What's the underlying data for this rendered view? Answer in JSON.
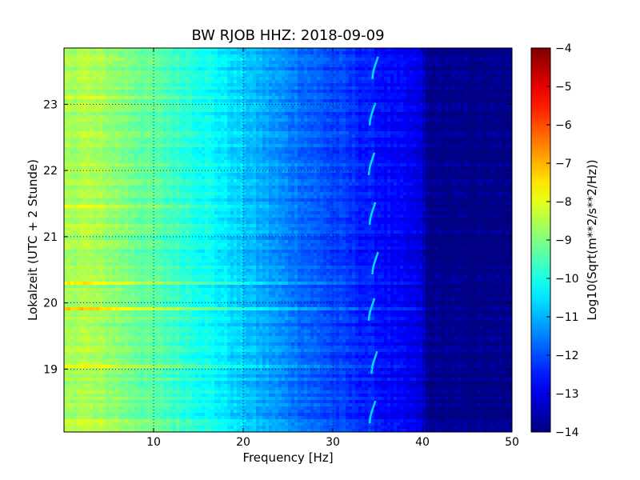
{
  "chart_data": {
    "type": "heatmap",
    "title": "BW RJOB HHZ: 2018-09-09",
    "xlabel": "Frequency [Hz]",
    "ylabel": "Lokalzeit (UTC + 2 Stunde)",
    "xlim": [
      0,
      50
    ],
    "ylim": [
      23.85,
      18.05
    ],
    "x_ticks": [
      10,
      20,
      30,
      40,
      50
    ],
    "x_tick_labels": [
      "10",
      "20",
      "30",
      "40",
      "50"
    ],
    "y_ticks": [
      19,
      20,
      21,
      22,
      23
    ],
    "y_tick_labels": [
      "19",
      "20",
      "21",
      "22",
      "23"
    ],
    "grid": true,
    "colorbar": {
      "label": "Log10(Sqrt(m**2/s**2/Hz))",
      "range": [
        -14,
        -4
      ],
      "ticks": [
        -14,
        -13,
        -12,
        -11,
        -10,
        -9,
        -8,
        -7,
        -6,
        -5,
        -4
      ],
      "tick_labels": [
        "−14",
        "−13",
        "−12",
        "−11",
        "−10",
        "−9",
        "−8",
        "−7",
        "−6",
        "−5",
        "−4"
      ],
      "colormap": "jet"
    },
    "spectral_profile": {
      "frequency_hz": [
        0,
        2,
        5,
        10,
        15,
        20,
        25,
        30,
        35,
        38,
        40,
        40.5,
        50
      ],
      "log_amplitude": [
        -8.7,
        -8.5,
        -8.8,
        -9.4,
        -10.0,
        -10.8,
        -11.5,
        -12.1,
        -12.6,
        -12.9,
        -13.1,
        -13.9,
        -14.0
      ]
    },
    "horizontal_bands": [
      {
        "hour": 18.2,
        "offset": 0.7
      },
      {
        "hour": 19.05,
        "offset": 0.9
      },
      {
        "hour": 19.9,
        "offset": 1.6
      },
      {
        "hour": 20.3,
        "offset": 1.0
      },
      {
        "hour": 20.9,
        "offset": 0.9
      },
      {
        "hour": 21.15,
        "offset": 0.8
      },
      {
        "hour": 21.45,
        "offset": 1.1
      },
      {
        "hour": 23.1,
        "offset": 0.7
      }
    ],
    "harmonic_tremor_marks": [
      {
        "hour": 18.35,
        "frequency_hz": 34.3
      },
      {
        "hour": 19.1,
        "frequency_hz": 34.5
      },
      {
        "hour": 19.9,
        "frequency_hz": 34.2
      },
      {
        "hour": 20.6,
        "frequency_hz": 34.6
      },
      {
        "hour": 21.35,
        "frequency_hz": 34.3
      },
      {
        "hour": 22.1,
        "frequency_hz": 34.2
      },
      {
        "hour": 22.85,
        "frequency_hz": 34.3
      },
      {
        "hour": 23.55,
        "frequency_hz": 34.6
      }
    ]
  }
}
